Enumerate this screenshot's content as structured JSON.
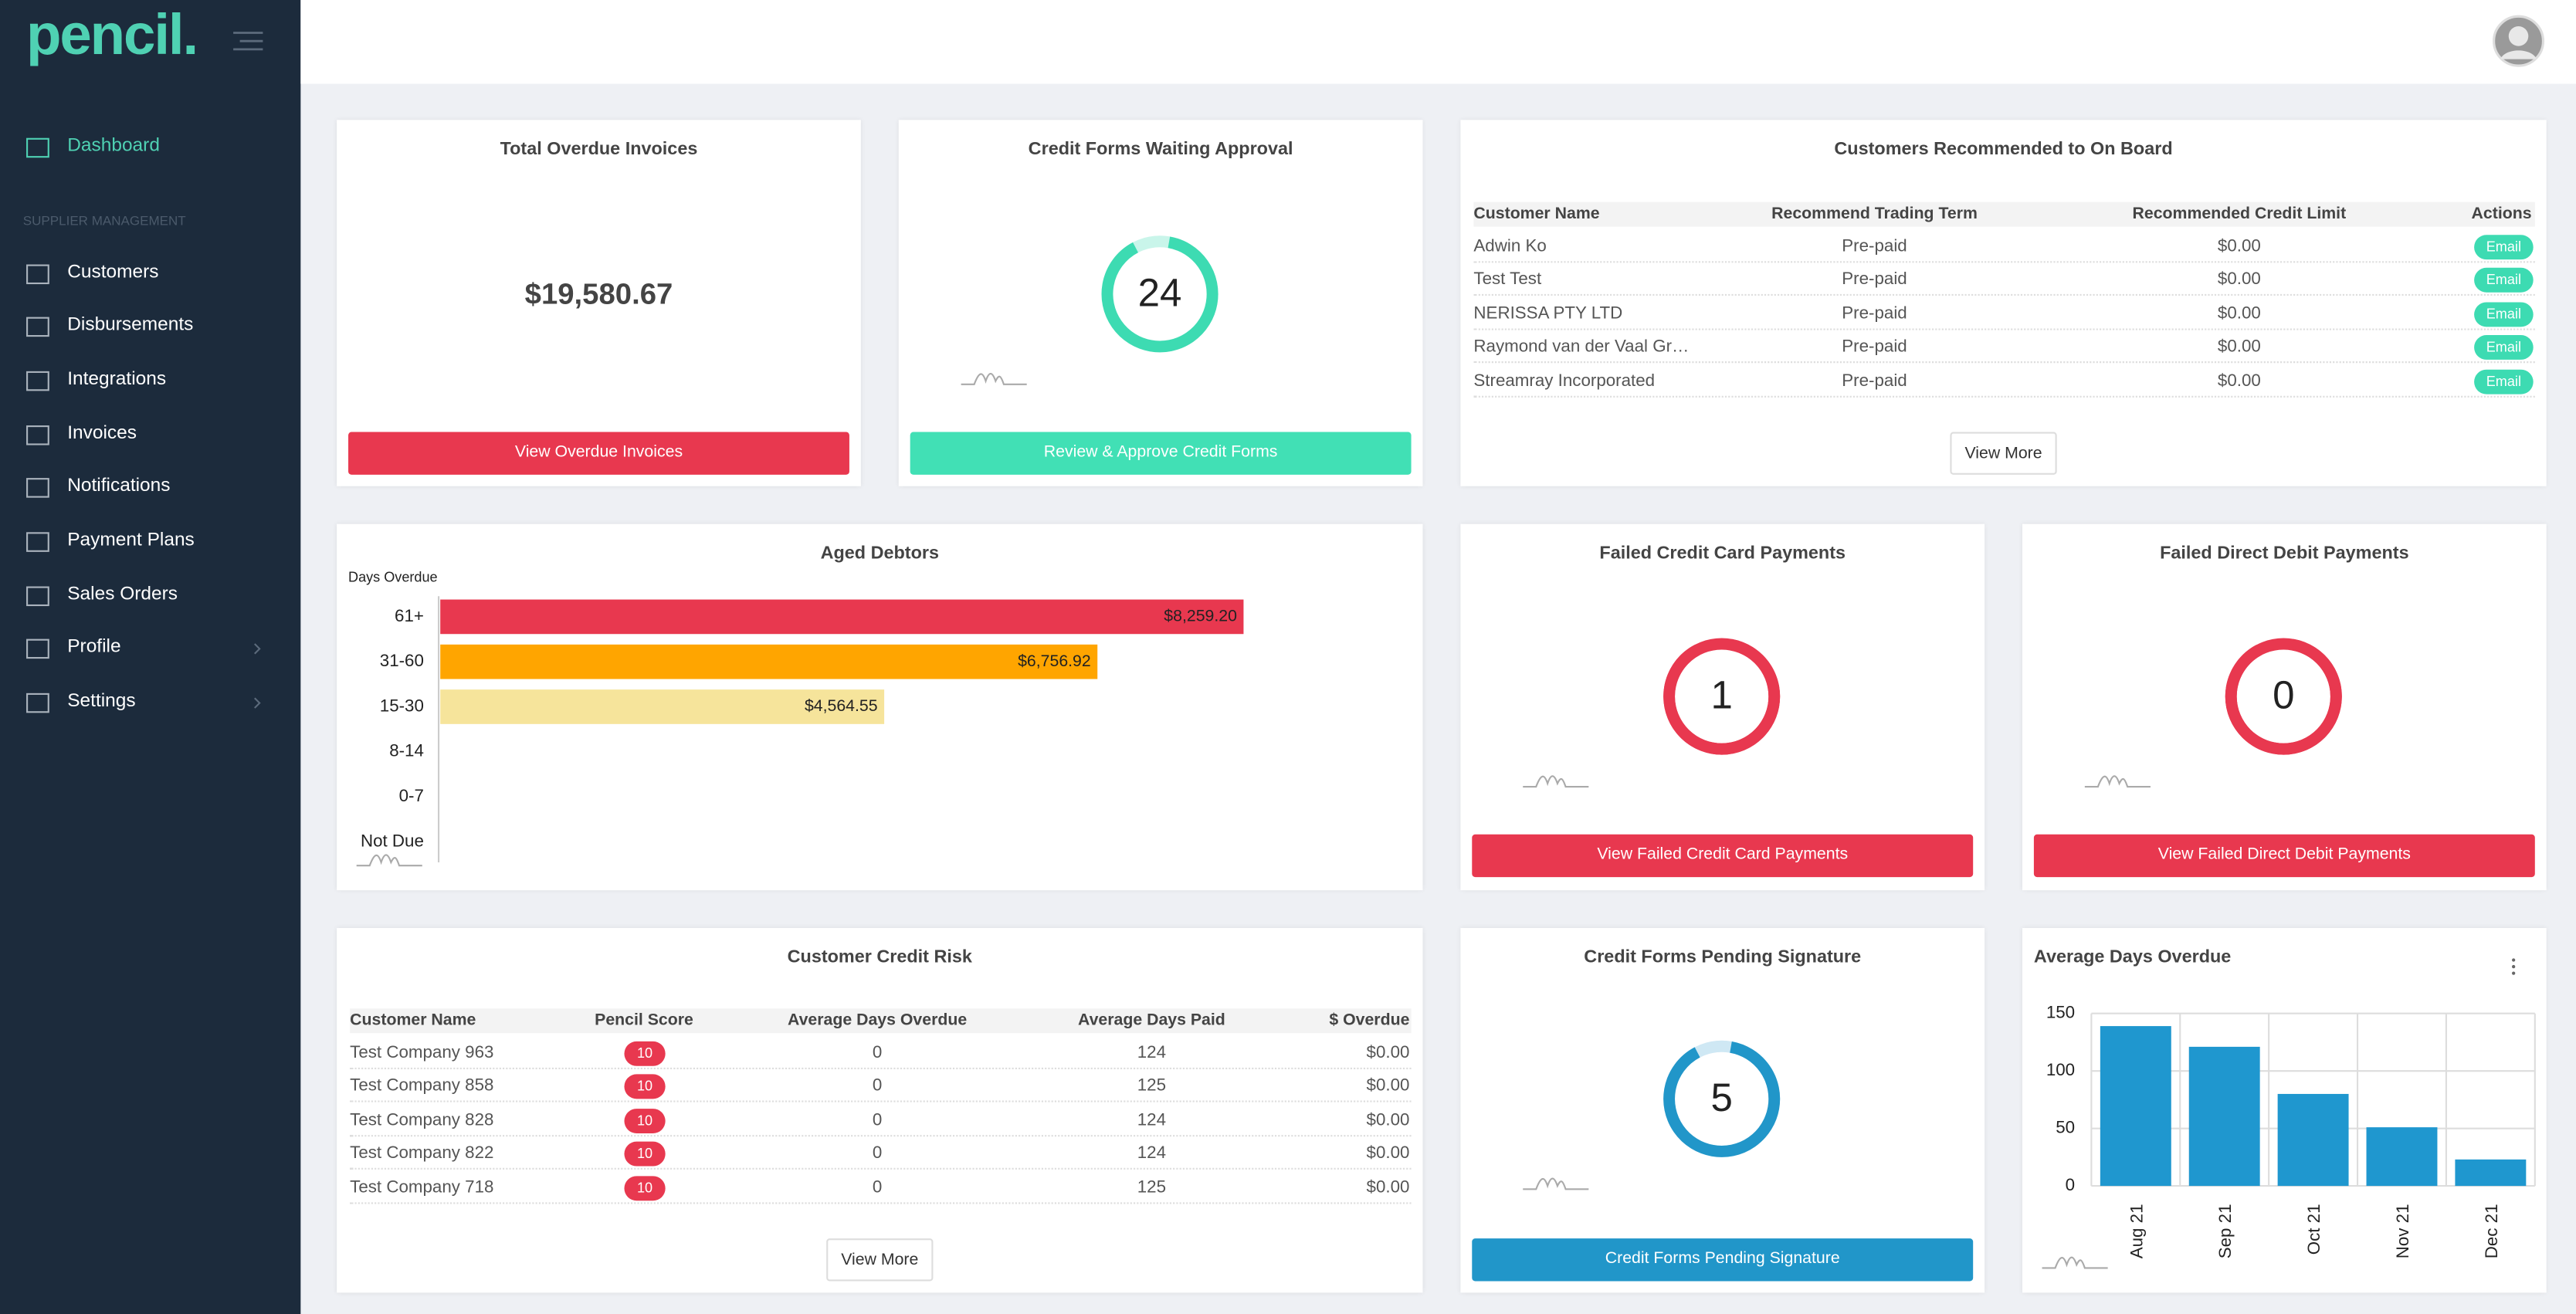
{
  "sidebar": {
    "logo": "pencil.",
    "section": "SUPPLIER MANAGEMENT",
    "nav": [
      {
        "label": "Dashboard"
      },
      {
        "label": "Customers"
      },
      {
        "label": "Disbursements"
      },
      {
        "label": "Integrations"
      },
      {
        "label": "Invoices"
      },
      {
        "label": "Notifications"
      },
      {
        "label": "Payment Plans"
      },
      {
        "label": "Sales Orders"
      },
      {
        "label": "Profile"
      },
      {
        "label": "Settings"
      }
    ]
  },
  "overdue_card": {
    "title": "Total Overdue Invoices",
    "amount": "$19,580.67",
    "button": "View Overdue Invoices"
  },
  "approval_card": {
    "title": "Credit Forms Waiting Approval",
    "count": 24,
    "button": "Review & Approve Credit Forms"
  },
  "recommended_card": {
    "title": "Customers Recommended to On Board",
    "columns": [
      "Customer Name",
      "Recommend Trading Term",
      "Recommended Credit Limit",
      "Actions"
    ],
    "rows": [
      [
        "Adwin Ko",
        "Pre-paid",
        "$0.00",
        "Email"
      ],
      [
        "Test Test",
        "Pre-paid",
        "$0.00",
        "Email"
      ],
      [
        "NERISSA PTY LTD",
        "Pre-paid",
        "$0.00",
        "Email"
      ],
      [
        "Raymond van der Vaal Gr…",
        "Pre-paid",
        "$0.00",
        "Email"
      ],
      [
        "Streamray Incorporated",
        "Pre-paid",
        "$0.00",
        "Email"
      ]
    ],
    "button": "View More"
  },
  "aged_card": {
    "chart_data": {
      "type": "hbar",
      "title": "Aged Debtors",
      "y_label": "Days Overdue",
      "categories": [
        "61+",
        "31-60",
        "15-30",
        "8-14",
        "0-7",
        "Not Due"
      ],
      "values": [
        8259.2,
        6756.92,
        4564.55,
        0,
        0,
        0
      ],
      "value_labels": [
        "$8,259.20",
        "$6,756.92",
        "$4,564.55",
        null,
        null,
        null
      ],
      "colors": [
        "#e8384f",
        "#ffa500",
        "#f6e49b",
        "#cccccc",
        "#cccccc",
        "#cccccc"
      ],
      "xlim": [
        0,
        10000
      ]
    }
  },
  "failed_cc_card": {
    "title": "Failed Credit Card Payments",
    "count": 1,
    "button": "View Failed Credit Card Payments"
  },
  "failed_dd_card": {
    "title": "Failed Direct Debit Payments",
    "count": 0,
    "button": "View Failed Direct Debit Payments"
  },
  "risk_card": {
    "title": "Customer Credit Risk",
    "columns": [
      "Customer Name",
      "Pencil Score",
      "Average Days Overdue",
      "Average Days Paid",
      "$ Overdue"
    ],
    "rows": [
      [
        "Test Company 963",
        10,
        0,
        124,
        "$0.00"
      ],
      [
        "Test Company 858",
        10,
        0,
        125,
        "$0.00"
      ],
      [
        "Test Company 828",
        10,
        0,
        124,
        "$0.00"
      ],
      [
        "Test Company 822",
        10,
        0,
        124,
        "$0.00"
      ],
      [
        "Test Company 718",
        10,
        0,
        125,
        "$0.00"
      ]
    ],
    "button": "View More"
  },
  "pending_card": {
    "title": "Credit Forms Pending Signature",
    "count": 5,
    "button": "Credit Forms Pending Signature"
  },
  "days_card": {
    "chart_data": {
      "type": "bar",
      "title": "Average Days Overdue",
      "categories": [
        "Aug 21",
        "Sep 21",
        "Oct 21",
        "Nov 21",
        "Dec 21"
      ],
      "values": [
        139,
        121,
        80,
        51,
        23
      ],
      "color": "#1f97cf",
      "ylim": [
        0,
        150
      ],
      "yticks": [
        0,
        50,
        100,
        150
      ],
      "grid": true
    }
  }
}
